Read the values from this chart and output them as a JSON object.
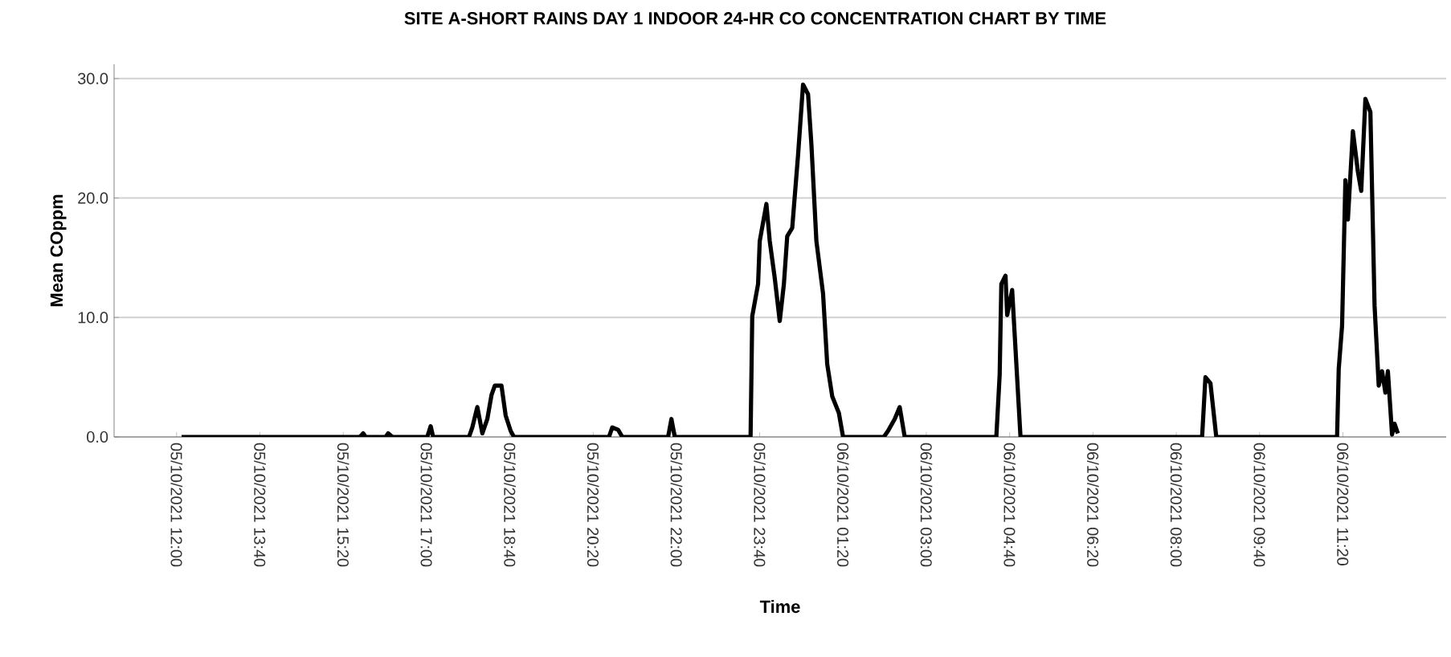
{
  "chart_data": {
    "type": "line",
    "title": "SITE A-SHORT RAINS DAY 1 INDOOR 24-HR CO CONCENTRATION CHART BY TIME",
    "xlabel": "Time",
    "ylabel": "Mean COppm",
    "series": [
      {
        "color": "#000000",
        "x": [
          "2021-10-05T12:06",
          "2021-10-05T15:40",
          "2021-10-05T15:44",
          "2021-10-05T15:47",
          "2021-10-05T16:11",
          "2021-10-05T16:14",
          "2021-10-05T16:19",
          "2021-10-05T17:01",
          "2021-10-05T17:05",
          "2021-10-05T17:08",
          "2021-10-05T17:51",
          "2021-10-05T17:55",
          "2021-10-05T18:01",
          "2021-10-05T18:07",
          "2021-10-05T18:13",
          "2021-10-05T18:18",
          "2021-10-05T18:22",
          "2021-10-05T18:30",
          "2021-10-05T18:35",
          "2021-10-05T18:41",
          "2021-10-05T18:45",
          "2021-10-05T20:39",
          "2021-10-05T20:43",
          "2021-10-05T20:50",
          "2021-10-05T20:55",
          "2021-10-05T21:50",
          "2021-10-05T21:54",
          "2021-10-05T21:58",
          "2021-10-05T23:29",
          "2021-10-05T23:31",
          "2021-10-05T23:38",
          "2021-10-05T23:40",
          "2021-10-05T23:48",
          "2021-10-05T23:52",
          "2021-10-05T23:58",
          "2021-10-06T00:04",
          "2021-10-06T00:09",
          "2021-10-06T00:13",
          "2021-10-06T00:19",
          "2021-10-06T00:26",
          "2021-10-06T00:32",
          "2021-10-06T00:38",
          "2021-10-06T00:42",
          "2021-10-06T00:48",
          "2021-10-06T00:56",
          "2021-10-06T01:01",
          "2021-10-06T01:07",
          "2021-10-06T01:15",
          "2021-10-06T01:20",
          "2021-10-06T02:09",
          "2021-10-06T02:14",
          "2021-10-06T02:22",
          "2021-10-06T02:28",
          "2021-10-06T02:34",
          "2021-10-06T04:24",
          "2021-10-06T04:28",
          "2021-10-06T04:30",
          "2021-10-06T04:35",
          "2021-10-06T04:37",
          "2021-10-06T04:43",
          "2021-10-06T04:53",
          "2021-10-06T08:31",
          "2021-10-06T08:35",
          "2021-10-06T08:41",
          "2021-10-06T08:48",
          "2021-10-06T11:13",
          "2021-10-06T11:15",
          "2021-10-06T11:19",
          "2021-10-06T11:23",
          "2021-10-06T11:26",
          "2021-10-06T11:32",
          "2021-10-06T11:38",
          "2021-10-06T11:42",
          "2021-10-06T11:47",
          "2021-10-06T11:53",
          "2021-10-06T11:58",
          "2021-10-06T12:03",
          "2021-10-06T12:07",
          "2021-10-06T12:11",
          "2021-10-06T12:14",
          "2021-10-06T12:19",
          "2021-10-06T12:22",
          "2021-10-06T12:26"
        ],
        "values": [
          0,
          0,
          0.3,
          0,
          0,
          0.3,
          0,
          0,
          0.9,
          0,
          0,
          0.8,
          2.5,
          0.3,
          1.5,
          3.5,
          4.3,
          4.3,
          1.8,
          0.5,
          0,
          0,
          0.8,
          0.6,
          0,
          0,
          1.5,
          0,
          0,
          10.1,
          12.8,
          16.4,
          19.5,
          16.4,
          13.3,
          9.7,
          12.8,
          16.8,
          17.5,
          23.6,
          29.5,
          28.7,
          24.5,
          16.4,
          12.0,
          6.1,
          3.4,
          2.0,
          0,
          0,
          0.5,
          1.5,
          2.5,
          0,
          0,
          5.2,
          12.8,
          13.5,
          10.2,
          12.3,
          0,
          0,
          5.0,
          4.5,
          0,
          0,
          5.7,
          9.3,
          21.5,
          18.2,
          25.6,
          22.2,
          20.6,
          28.3,
          27.2,
          11.0,
          4.3,
          5.5,
          3.7,
          5.5,
          0.2,
          1.1,
          0.3
        ]
      }
    ],
    "xlim": [
      "2021-10-05T10:45",
      "2021-10-06T13:24"
    ],
    "xticks": [
      {
        "value": "2021-10-05T12:00",
        "label": "05/10/2021 12:00"
      },
      {
        "value": "2021-10-05T13:40",
        "label": "05/10/2021 13:40"
      },
      {
        "value": "2021-10-05T15:20",
        "label": "05/10/2021 15:20"
      },
      {
        "value": "2021-10-05T17:00",
        "label": "05/10/2021 17:00"
      },
      {
        "value": "2021-10-05T18:40",
        "label": "05/10/2021 18:40"
      },
      {
        "value": "2021-10-05T20:20",
        "label": "05/10/2021 20:20"
      },
      {
        "value": "2021-10-05T22:00",
        "label": "05/10/2021 22:00"
      },
      {
        "value": "2021-10-05T23:40",
        "label": "05/10/2021 23:40"
      },
      {
        "value": "2021-10-06T01:20",
        "label": "06/10/2021 01:20"
      },
      {
        "value": "2021-10-06T03:00",
        "label": "06/10/2021 03:00"
      },
      {
        "value": "2021-10-06T04:40",
        "label": "06/10/2021 04:40"
      },
      {
        "value": "2021-10-06T06:20",
        "label": "06/10/2021 06:20"
      },
      {
        "value": "2021-10-06T08:00",
        "label": "06/10/2021 08:00"
      },
      {
        "value": "2021-10-06T09:40",
        "label": "06/10/2021 09:40"
      },
      {
        "value": "2021-10-06T11:20",
        "label": "06/10/2021 11:20"
      }
    ],
    "ylim": [
      0,
      31.2
    ],
    "yticks": [
      {
        "value": 0,
        "label": "0.0"
      },
      {
        "value": 10,
        "label": "10.0"
      },
      {
        "value": 20,
        "label": "20.0"
      },
      {
        "value": 30,
        "label": "30.0"
      }
    ],
    "grid": "y",
    "marker": "none",
    "line_style": "solid"
  }
}
